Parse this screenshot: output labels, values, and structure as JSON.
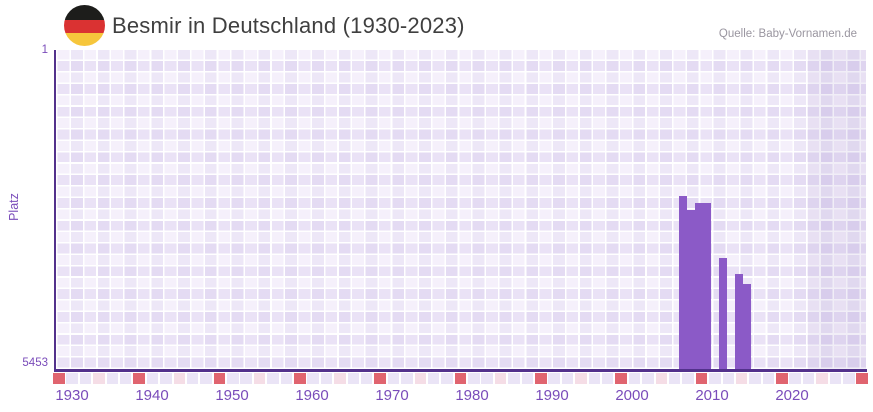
{
  "header": {
    "title": "Besmir in Deutschland (1930-2023)",
    "flag_icon": "germany-flag-icon",
    "source": "Quelle: Baby-Vornamen.de"
  },
  "chart_data": {
    "type": "bar",
    "title": "Besmir in Deutschland (1930-2023)",
    "ylabel": "Platz",
    "xlabel": "",
    "y_axis": {
      "top_label": "1",
      "bottom_label": "5453",
      "min": 1,
      "max": 5453,
      "inverted": true
    },
    "x_axis": {
      "tick_years": [
        1930,
        1940,
        1950,
        1960,
        1970,
        1980,
        1990,
        2000,
        2010,
        2020
      ],
      "range_label": "1930-2023"
    },
    "series": [
      {
        "name": "Platz",
        "points": [
          {
            "year": 2006,
            "platz": 2500
          },
          {
            "year": 2007,
            "platz": 2740
          },
          {
            "year": 2008,
            "platz": 2620
          },
          {
            "year": 2009,
            "platz": 2620
          },
          {
            "year": 2011,
            "platz": 3560
          },
          {
            "year": 2013,
            "platz": 3830
          },
          {
            "year": 2014,
            "platz": 4000
          }
        ]
      }
    ],
    "legend": null,
    "grid": "plaid-lavender",
    "recent_band": {
      "description": "darker shaded band at right edge of plot"
    }
  },
  "timeline_strip": {
    "cell_count": 61,
    "accent_every": 6,
    "accent_offset": 0,
    "soft_offset": 3
  },
  "colors": {
    "bar": "#8b5ac7",
    "axis": "#53318c",
    "tick_label": "#7a4cba",
    "title_text": "#3f3f3f",
    "source_text": "#9a96a0",
    "strip_accent": "#e0646f",
    "strip_soft": "#f5dde6",
    "strip_base": "#eae4f6",
    "recent_band": "rgba(116,88,176,0.10)"
  }
}
